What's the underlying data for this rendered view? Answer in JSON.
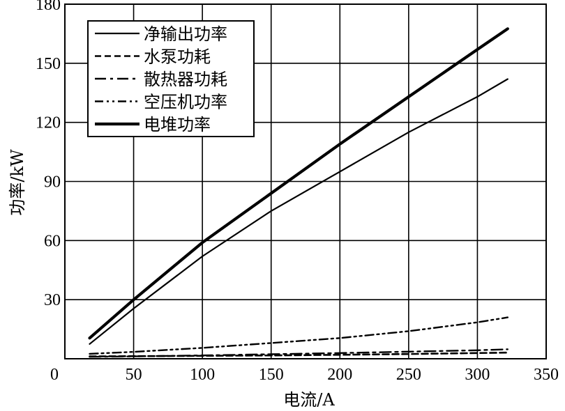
{
  "chart_data": {
    "type": "line",
    "title": "",
    "xlabel": "电流/A",
    "ylabel": "功率/kW",
    "xlim": [
      0,
      350
    ],
    "ylim": [
      0,
      180
    ],
    "xticks": [
      0,
      50,
      100,
      150,
      200,
      250,
      300,
      350
    ],
    "yticks": [
      30,
      60,
      90,
      120,
      150,
      180
    ],
    "grid": true,
    "legend_position": "top-left",
    "series": [
      {
        "name": "净输出功率",
        "style": "solid",
        "x": [
          18,
          50,
          100,
          150,
          200,
          250,
          300,
          322
        ],
        "y": [
          7.5,
          25.5,
          52,
          75,
          95,
          115,
          133,
          142
        ]
      },
      {
        "name": "水泵功耗",
        "style": "dashed",
        "x": [
          18,
          50,
          100,
          150,
          200,
          250,
          300,
          322
        ],
        "y": [
          1.2,
          1.3,
          1.5,
          1.7,
          2.0,
          2.4,
          2.9,
          3.1
        ]
      },
      {
        "name": "散热器功耗",
        "style": "longdash-dot",
        "x": [
          18,
          50,
          100,
          150,
          200,
          250,
          300,
          322
        ],
        "y": [
          1.0,
          1.2,
          1.7,
          2.3,
          2.9,
          3.6,
          4.3,
          4.8
        ]
      },
      {
        "name": "空压机功率",
        "style": "dash-dot-dot",
        "x": [
          18,
          50,
          100,
          150,
          200,
          250,
          300,
          322
        ],
        "y": [
          2.5,
          3.5,
          5.5,
          8.0,
          10.5,
          14.0,
          18.5,
          21.0
        ]
      },
      {
        "name": "电堆功率",
        "style": "thick",
        "x": [
          18,
          50,
          100,
          150,
          200,
          250,
          300,
          322
        ],
        "y": [
          10.5,
          30,
          59,
          84,
          109,
          133,
          157,
          167.5
        ]
      }
    ]
  }
}
